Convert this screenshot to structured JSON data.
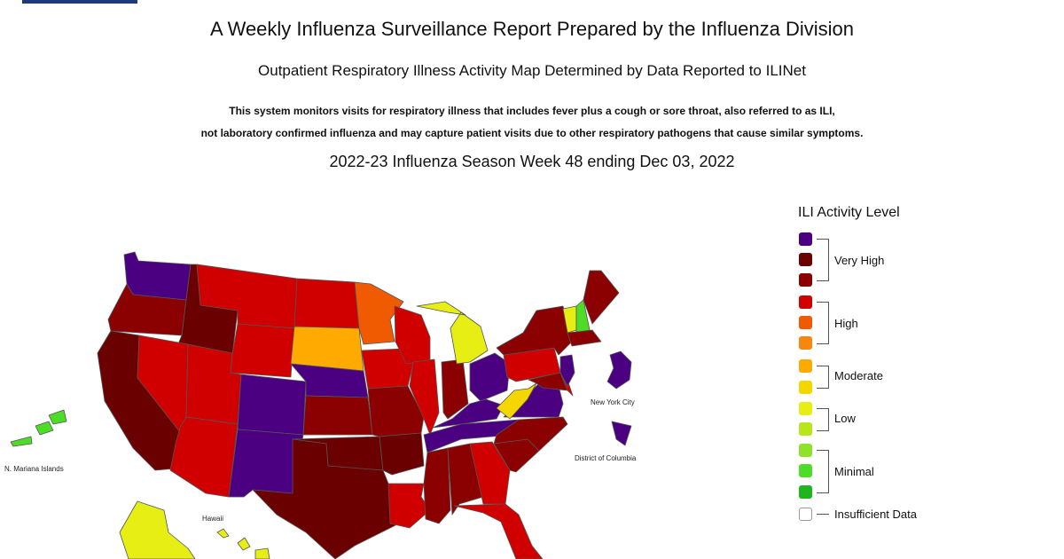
{
  "header": {
    "title": "A Weekly Influenza Surveillance Report Prepared by the Influenza Division",
    "subtitle": "Outpatient Respiratory Illness Activity Map Determined by Data Reported to ILINet",
    "description_line1": "This system monitors visits for respiratory illness that includes fever plus a cough or sore throat, also referred to as ILI,",
    "description_line2": "not laboratory confirmed influenza and may capture patient visits due to other respiratory pathogens that cause similar symptoms.",
    "week_label": "2022-23 Influenza Season Week 48 ending Dec 03, 2022"
  },
  "map": {
    "labels": {
      "new_york_city": "New York City",
      "district_of_columbia": "District of Columbia",
      "mariana": "N. Mariana Islands",
      "hawaii": "Hawaii"
    },
    "levels": {
      "very_high_13": "#4b0082",
      "very_high_12": "#6b0000",
      "very_high_11": "#8b0000",
      "high_10": "#d00000",
      "high_9": "#f05a00",
      "high_8": "#f7870f",
      "moderate_7": "#ffaa00",
      "moderate_6": "#f4d700",
      "low_5": "#e6ee14",
      "low_4": "#b8e61b",
      "minimal_3": "#8fe22a",
      "minimal_2": "#4ddc28",
      "minimal_1": "#1fb51f"
    },
    "states": {
      "WA": "very_high_13",
      "OR": "very_high_11",
      "CA": "very_high_12",
      "ID": "very_high_12",
      "NV": "high_10",
      "MT": "high_10",
      "WY": "high_10",
      "UT": "high_10",
      "AZ": "high_10",
      "CO": "very_high_13",
      "NM": "very_high_13",
      "ND": "high_10",
      "SD": "moderate_7",
      "NE": "very_high_13",
      "KS": "very_high_11",
      "OK": "very_high_12",
      "TX": "very_high_12",
      "MN": "high_9",
      "IA": "high_10",
      "MO": "very_high_11",
      "AR": "very_high_12",
      "LA": "high_10",
      "WI": "high_10",
      "IL": "high_10",
      "MI": "low_5",
      "IN": "very_high_11",
      "OH": "very_high_13",
      "KY": "very_high_13",
      "TN": "very_high_13",
      "MS": "very_high_11",
      "AL": "very_high_11",
      "GA": "high_10",
      "FL": "high_10",
      "SC": "very_high_11",
      "NC": "very_high_11",
      "VA": "very_high_13",
      "WV": "moderate_6",
      "PA": "high_10",
      "NY": "very_high_11",
      "ME": "very_high_11",
      "VT": "low_5",
      "NH": "minimal_2",
      "MA": "very_high_11",
      "NJ": "very_high_13",
      "DE": "high_10",
      "MD": "very_high_11",
      "AK": "low_5",
      "HI": "low_5",
      "MP": "minimal_2",
      "NYC": "very_high_13",
      "DC": "very_high_13"
    }
  },
  "legend": {
    "title": "ILI Activity Level",
    "swatches": [
      "#4b0082",
      "#6b0000",
      "#8b0000",
      "#d00000",
      "#f05a00",
      "#f7870f",
      "#ffaa00",
      "#f4d700",
      "#e6ee14",
      "#b8e61b",
      "#8fe22a",
      "#4ddc28",
      "#1fb51f",
      "#ffffff"
    ],
    "groups": [
      "Very High",
      "High",
      "Moderate",
      "Low",
      "Minimal"
    ],
    "insufficient_label": "Insufficient Data"
  }
}
